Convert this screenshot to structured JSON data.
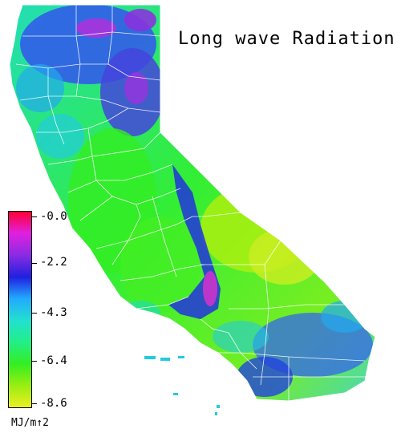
{
  "title": "Long wave Radiation",
  "legend": {
    "unit": "MJ/m↑2",
    "ticks": [
      "-0.0",
      "-2.2",
      "-4.3",
      "-6.4",
      "-8.6"
    ],
    "range": [
      -8.6,
      0.0
    ],
    "colors": [
      "#ff0033",
      "#e020e0",
      "#8a2be2",
      "#2020e0",
      "#22aaff",
      "#22e0d0",
      "#22ee88",
      "#33ee22",
      "#99ee11",
      "#eeee22"
    ]
  }
}
